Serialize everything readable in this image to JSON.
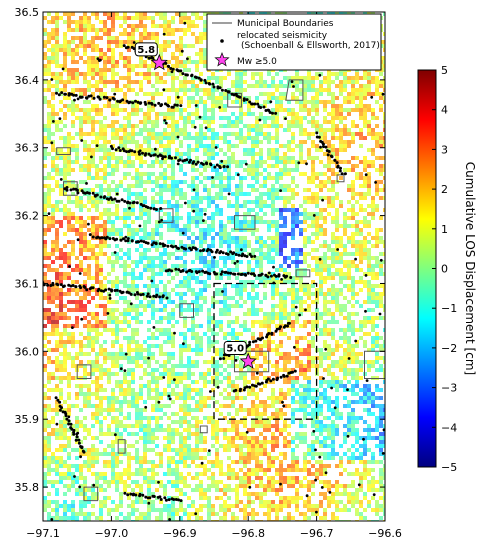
{
  "chart_data": {
    "type": "scatter",
    "title": "",
    "xlabel": "",
    "ylabel": "",
    "xlim": [
      -97.1,
      -96.6
    ],
    "ylim": [
      35.75,
      36.5
    ],
    "x_ticks": [
      -97.1,
      -97.0,
      -96.9,
      -96.8,
      -96.7,
      -96.6
    ],
    "x_tick_labels": [
      "−97.1",
      "−97.0",
      "−96.9",
      "−96.8",
      "−96.7",
      "−96.6"
    ],
    "y_ticks": [
      35.8,
      35.9,
      36.0,
      36.1,
      36.2,
      36.3,
      36.4,
      36.5
    ],
    "y_tick_labels": [
      "35.8",
      "35.9",
      "36.0",
      "36.1",
      "36.2",
      "36.3",
      "36.4",
      "36.5"
    ],
    "grid": false,
    "legend": {
      "placement": "top-right",
      "entries": [
        {
          "key": "boundaries",
          "label": "Municipal Boundaries",
          "marker": "line",
          "color": "#666666"
        },
        {
          "key": "seismicity",
          "label_line1": "relocated seismicity",
          "label_line2": "(Schoenball & Ellsworth, 2017)",
          "marker": "dot",
          "color": "#000000"
        },
        {
          "key": "mainshock",
          "label": "Mw  ≥5.0",
          "marker": "star",
          "color": "#ff44ee"
        }
      ]
    },
    "mainshocks": [
      {
        "lon": -96.93,
        "lat": 36.425,
        "label": "5.8"
      },
      {
        "lon": -96.8,
        "lat": 35.985,
        "label": "5.0"
      }
    ],
    "inset_box": {
      "lon_min": -96.85,
      "lon_max": -96.7,
      "lat_min": 35.9,
      "lat_max": 36.1
    },
    "seismicity_lineaments": [
      {
        "from": [
          -96.98,
          36.45
        ],
        "to": [
          -96.76,
          36.35
        ]
      },
      {
        "from": [
          -97.08,
          36.38
        ],
        "to": [
          -96.9,
          36.36
        ]
      },
      {
        "from": [
          -97.0,
          36.3
        ],
        "to": [
          -96.83,
          36.27
        ]
      },
      {
        "from": [
          -97.07,
          36.24
        ],
        "to": [
          -96.93,
          36.21
        ]
      },
      {
        "from": [
          -97.03,
          36.17
        ],
        "to": [
          -96.79,
          36.14
        ]
      },
      {
        "from": [
          -97.1,
          36.1
        ],
        "to": [
          -96.92,
          36.08
        ]
      },
      {
        "from": [
          -96.92,
          36.12
        ],
        "to": [
          -96.74,
          36.11
        ]
      },
      {
        "from": [
          -96.84,
          35.99
        ],
        "to": [
          -96.74,
          36.04
        ]
      },
      {
        "from": [
          -96.82,
          35.94
        ],
        "to": [
          -96.73,
          35.97
        ]
      },
      {
        "from": [
          -96.7,
          36.32
        ],
        "to": [
          -96.66,
          36.26
        ]
      },
      {
        "from": [
          -97.08,
          35.93
        ],
        "to": [
          -97.04,
          35.85
        ]
      },
      {
        "from": [
          -96.98,
          35.79
        ],
        "to": [
          -96.9,
          35.78
        ]
      }
    ],
    "colorbar": {
      "label": "Cumulative LOS Displacement [cm]",
      "min": -5,
      "max": 5,
      "ticks": [
        -5,
        -4,
        -3,
        -2,
        -1,
        0,
        1,
        2,
        3,
        4,
        5
      ],
      "tick_labels": [
        "−5",
        "−4",
        "−3",
        "−2",
        "−1",
        "0",
        "1",
        "2",
        "3",
        "4",
        "5"
      ],
      "colormap": [
        "#00007f",
        "#0000ff",
        "#007fff",
        "#00ffff",
        "#7fff7f",
        "#ffff00",
        "#ff7f00",
        "#ff0000",
        "#7f0000"
      ]
    }
  }
}
